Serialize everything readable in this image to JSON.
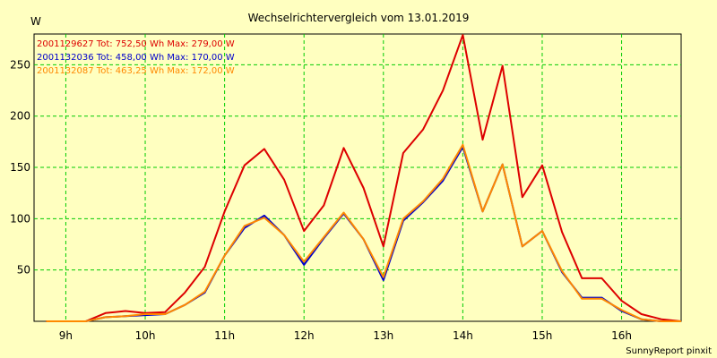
{
  "chart_data": {
    "type": "line",
    "title": "Wechselrichtervergleich vom 13.01.2019",
    "ylabel": "W",
    "xlabel": "",
    "xlim": [
      8.6,
      16.75
    ],
    "ylim": [
      0,
      280
    ],
    "grid": true,
    "x_ticks": [
      9,
      10,
      11,
      12,
      13,
      14,
      15,
      16
    ],
    "x_tick_labels": [
      "9h",
      "10h",
      "11h",
      "12h",
      "13h",
      "14h",
      "15h",
      "16h"
    ],
    "y_ticks": [
      50,
      100,
      150,
      200,
      250
    ],
    "y_tick_labels": [
      "50",
      "100",
      "150",
      "200",
      "250"
    ],
    "legend_position": "top-left",
    "x": [
      8.75,
      9.0,
      9.25,
      9.5,
      9.75,
      10.0,
      10.25,
      10.5,
      10.75,
      11.0,
      11.25,
      11.5,
      11.75,
      12.0,
      12.25,
      12.5,
      12.75,
      13.0,
      13.25,
      13.5,
      13.75,
      14.0,
      14.25,
      14.5,
      14.75,
      15.0,
      15.25,
      15.5,
      15.75,
      16.0,
      16.25,
      16.5,
      16.75
    ],
    "series": [
      {
        "name": "2001129627",
        "legend": "2001129627 Tot: 752,50 Wh Max: 279,00 W",
        "color": "#dd0000",
        "values": [
          0,
          0,
          0,
          8,
          10,
          8,
          9,
          28,
          53,
          107,
          152,
          168,
          138,
          88,
          113,
          169,
          130,
          73,
          164,
          187,
          225,
          279,
          177,
          249,
          121,
          152,
          87,
          42,
          42,
          20,
          7,
          2,
          0
        ]
      },
      {
        "name": "2001132036",
        "legend": "2001132036 Tot: 458,00 Wh Max: 170,00 W",
        "color": "#0000cc",
        "values": [
          0,
          0,
          0,
          4,
          5,
          6,
          7,
          16,
          28,
          64,
          91,
          103,
          84,
          55,
          81,
          105,
          80,
          40,
          98,
          116,
          137,
          170,
          107,
          153,
          73,
          88,
          48,
          23,
          23,
          10,
          2,
          0,
          0
        ]
      },
      {
        "name": "2001132087",
        "legend": "2001132087 Tot: 463,25 Wh Max: 172,00 W",
        "color": "#ff8800",
        "values": [
          0,
          0,
          0,
          4,
          5,
          7,
          7,
          16,
          29,
          64,
          93,
          101,
          84,
          58,
          82,
          106,
          80,
          43,
          100,
          117,
          139,
          172,
          107,
          153,
          73,
          88,
          49,
          22,
          22,
          11,
          2,
          0,
          0
        ]
      }
    ],
    "footer": "SunnyReport pinxit"
  }
}
